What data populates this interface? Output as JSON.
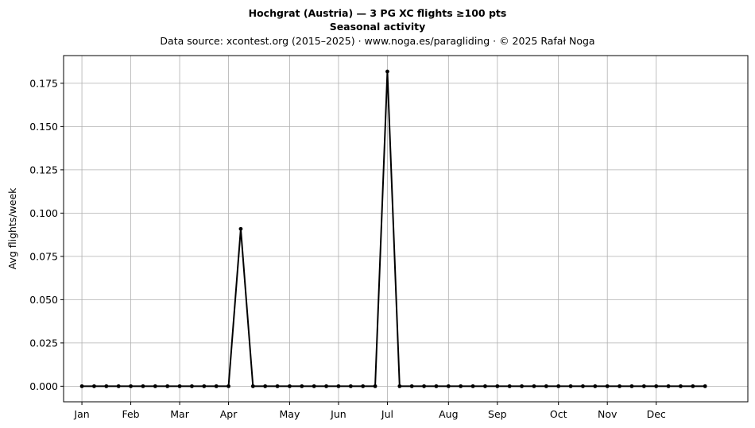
{
  "title": "Hochgrat (Austria)  —  3 PG XC flights ≥100 pts",
  "subtitle": "Seasonal activity",
  "source_line": "Data source: xcontest.org (2015–2025)  ·  www.noga.es/paragliding  ·  © 2025 Rafał Noga",
  "chart_data": {
    "type": "line",
    "title": "Hochgrat (Austria)  —  3 PG XC flights ≥100 pts",
    "subtitle": "Seasonal activity",
    "xlabel": "",
    "ylabel": "Avg flights/week",
    "x_unit": "week of year",
    "xlim": [
      -1.5,
      54.5
    ],
    "ylim": [
      -0.009,
      0.191
    ],
    "grid": true,
    "x_ticks": [
      {
        "label": "Jan",
        "x": 0
      },
      {
        "label": "Feb",
        "x": 4
      },
      {
        "label": "Mar",
        "x": 8
      },
      {
        "label": "Apr",
        "x": 12
      },
      {
        "label": "May",
        "x": 17
      },
      {
        "label": "Jun",
        "x": 21
      },
      {
        "label": "Jul",
        "x": 25
      },
      {
        "label": "Aug",
        "x": 30
      },
      {
        "label": "Sep",
        "x": 34
      },
      {
        "label": "Oct",
        "x": 39
      },
      {
        "label": "Nov",
        "x": 43
      },
      {
        "label": "Dec",
        "x": 47
      }
    ],
    "y_ticks": [
      "0.000",
      "0.025",
      "0.050",
      "0.075",
      "0.100",
      "0.125",
      "0.150",
      "0.175"
    ],
    "series": [
      {
        "x": [
          0,
          1,
          2,
          3,
          4,
          5,
          6,
          7,
          8,
          9,
          10,
          11,
          12,
          13,
          14,
          15,
          16,
          17,
          18,
          19,
          20,
          21,
          22,
          23,
          24,
          25,
          26,
          27,
          28,
          29,
          30,
          31,
          32,
          33,
          34,
          35,
          36,
          37,
          38,
          39,
          40,
          41,
          42,
          43,
          44,
          45,
          46,
          47,
          48,
          49,
          50,
          51
        ],
        "values": [
          0,
          0,
          0,
          0,
          0,
          0,
          0,
          0,
          0,
          0,
          0,
          0,
          0,
          0.0909,
          0,
          0,
          0,
          0,
          0,
          0,
          0,
          0,
          0,
          0,
          0,
          0.1818,
          0,
          0,
          0,
          0,
          0,
          0,
          0,
          0,
          0,
          0,
          0,
          0,
          0,
          0,
          0,
          0,
          0,
          0,
          0,
          0,
          0,
          0,
          0,
          0,
          0,
          0
        ],
        "color": "#000000"
      }
    ]
  }
}
